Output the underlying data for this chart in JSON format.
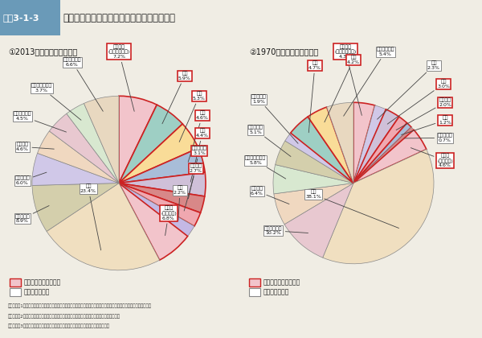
{
  "title": "図表3-1-3   家計の消費支出はモノからサービスへシフト",
  "subtitle1": "①2013年・二人以上の世帯",
  "subtitle2": "②1970年・二人以上の世帯",
  "bg_color": "#f0ede4",
  "header_color": "#b8ccd8",
  "pie1_values": [
    7.2,
    5.9,
    5.3,
    4.6,
    4.4,
    3.1,
    2.7,
    2.2,
    6.8,
    23.4,
    8.9,
    6.0,
    4.6,
    4.5,
    3.7,
    6.6
  ],
  "pie1_labels": [
    "教養娯楽\n(旅行、月謝等)",
    "住居",
    "外食",
    "通信",
    "教育",
    "自動車関係",
    "保健医療",
    "交通",
    "その他\n(サービス)",
    "食料",
    "光熱・水道",
    "自動車関係",
    "教養娯楽",
    "被服及び履物",
    "家具・家事用品",
    "その他（財）"
  ],
  "pie1_pcts": [
    "7.2%",
    "5.9%",
    "5.3%",
    "4.6%",
    "4.4%",
    "3.1%",
    "2.7%",
    "2.2%",
    "6.8%",
    "23.4%",
    "8.9%",
    "6.0%",
    "4.6%",
    "4.5%",
    "3.7%",
    "6.6%"
  ],
  "pie1_colors": [
    "#f2c4cb",
    "#9ecfc4",
    "#f9dc98",
    "#a8bdd8",
    "#cfc0d8",
    "#d88888",
    "#f0a8b0",
    "#c4b8e4",
    "#f2c4cb",
    "#f0dfc0",
    "#d4cfac",
    "#d0c8e8",
    "#f0d8c0",
    "#e8c8d0",
    "#d8e8d0",
    "#e8d8c0"
  ],
  "pie1_service": [
    true,
    true,
    true,
    true,
    true,
    true,
    true,
    false,
    true,
    false,
    false,
    false,
    false,
    false,
    false,
    false
  ],
  "pie2_values": [
    4.3,
    2.3,
    3.0,
    2.0,
    1.2,
    0.7,
    4.6,
    38.1,
    10.2,
    6.4,
    5.8,
    5.1,
    1.9,
    4.7,
    4.2,
    5.4
  ],
  "pie2_labels": [
    "教養娯楽\n(旅行、月謝等)",
    "交通",
    "教育",
    "保健医療",
    "通信",
    "自動車関係",
    "その他\n(サービス)",
    "食料",
    "被服及び履物",
    "教養娯楽",
    "家具・家事用品",
    "光熱・水道",
    "自動車関係",
    "住居",
    "外食",
    "その他（財）"
  ],
  "pie2_pcts": [
    "4.3%",
    "2.3%",
    "3.0%",
    "2.0%",
    "1.2%",
    "0.7%",
    "4.6%",
    "38.1%",
    "10.2%",
    "6.4%",
    "5.8%",
    "5.1%",
    "1.9%",
    "4.7%",
    "4.2%",
    "5.4%"
  ],
  "pie2_colors": [
    "#f2c4cb",
    "#d0c8e8",
    "#cfc0d8",
    "#f0a8b0",
    "#a8bdd8",
    "#d88888",
    "#f2c4cb",
    "#f0dfc0",
    "#e8c8d0",
    "#f0d8c0",
    "#d8e8d0",
    "#d4cfac",
    "#d0c8e8",
    "#9ecfc4",
    "#f9dc98",
    "#e8d8c0"
  ],
  "pie2_service": [
    true,
    false,
    true,
    true,
    true,
    false,
    true,
    false,
    false,
    false,
    false,
    false,
    false,
    true,
    true,
    false
  ],
  "note1": "（備考）　1．総務省「家計調査」により作成。二人以上の世帯（農林漁家世帯を除く。）の一世帯当たり支出の構成比。",
  "note2": "　　　　　2．「その他（サービス）」とは、家具・家事用品、被服及び履物、雑雑費の合計。",
  "note3": "　　　　　3．「その他（財）」とは、住居、保健医療、通信、教育、雑雑費の合計。",
  "service_border": "#cc2222",
  "goods_border": "#888888"
}
